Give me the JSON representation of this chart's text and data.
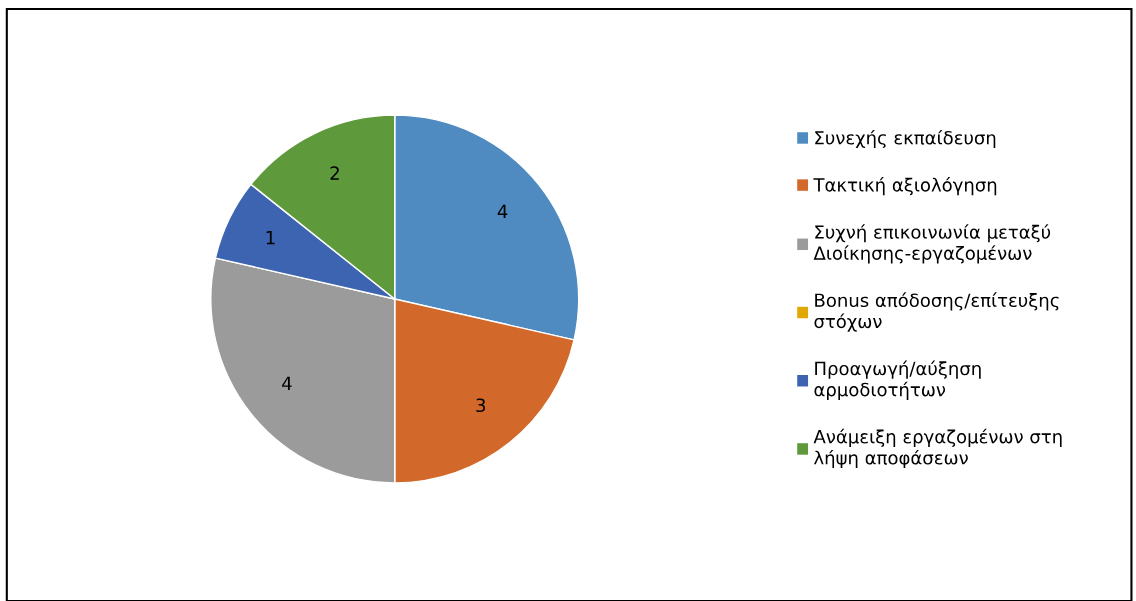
{
  "chart_data": {
    "type": "pie",
    "categories": [
      "Συνεχής εκπαίδευση",
      "Τακτική αξιολόγηση",
      "Συχνή επικοινωνία μεταξύ Διοίκησης-εργαζομένων",
      "Bonus απόδοσης/επίτευξης στόχων",
      "Προαγωγή/αύξηση αρμοδιοτήτων",
      "Ανάμειξη εργαζομένων στη λήψη αποφάσεων"
    ],
    "values": [
      4,
      3,
      4,
      0,
      1,
      2
    ],
    "colors": [
      "#4f8bc0",
      "#d2692a",
      "#9b9b9b",
      "#e0a800",
      "#3d64b0",
      "#5e9a3c"
    ],
    "value_labels": [
      "4",
      "3",
      "4",
      null,
      "1",
      "2"
    ],
    "legend": "right"
  }
}
